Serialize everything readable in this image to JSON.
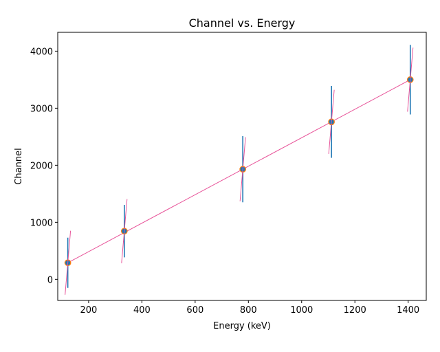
{
  "chart_data": {
    "type": "scatter",
    "title": "Channel vs. Energy",
    "xlabel": "Energy (keV)",
    "ylabel": "Channel",
    "xlim": [
      84,
      1468
    ],
    "ylim": [
      -370,
      4330
    ],
    "xticks": [
      200,
      400,
      600,
      800,
      1000,
      1200,
      1400
    ],
    "yticks": [
      0,
      1000,
      2000,
      3000,
      4000
    ],
    "grid": false,
    "legend": "none",
    "series": [
      {
        "kind": "errorbar",
        "color": "#1f77b4",
        "x": [
          121.8,
          334,
          779,
          1112,
          1408
        ],
        "y": [
          290,
          845,
          1930,
          2760,
          3500
        ],
        "yerr_low": [
          440,
          460,
          580,
          630,
          610
        ],
        "yerr_high": [
          440,
          460,
          580,
          630,
          610
        ]
      },
      {
        "kind": "line",
        "color": "#e8559a",
        "x": [
          121.8,
          1408
        ],
        "y": [
          290,
          3500
        ]
      }
    ],
    "marker_edge_color": "#ff7f0e"
  }
}
